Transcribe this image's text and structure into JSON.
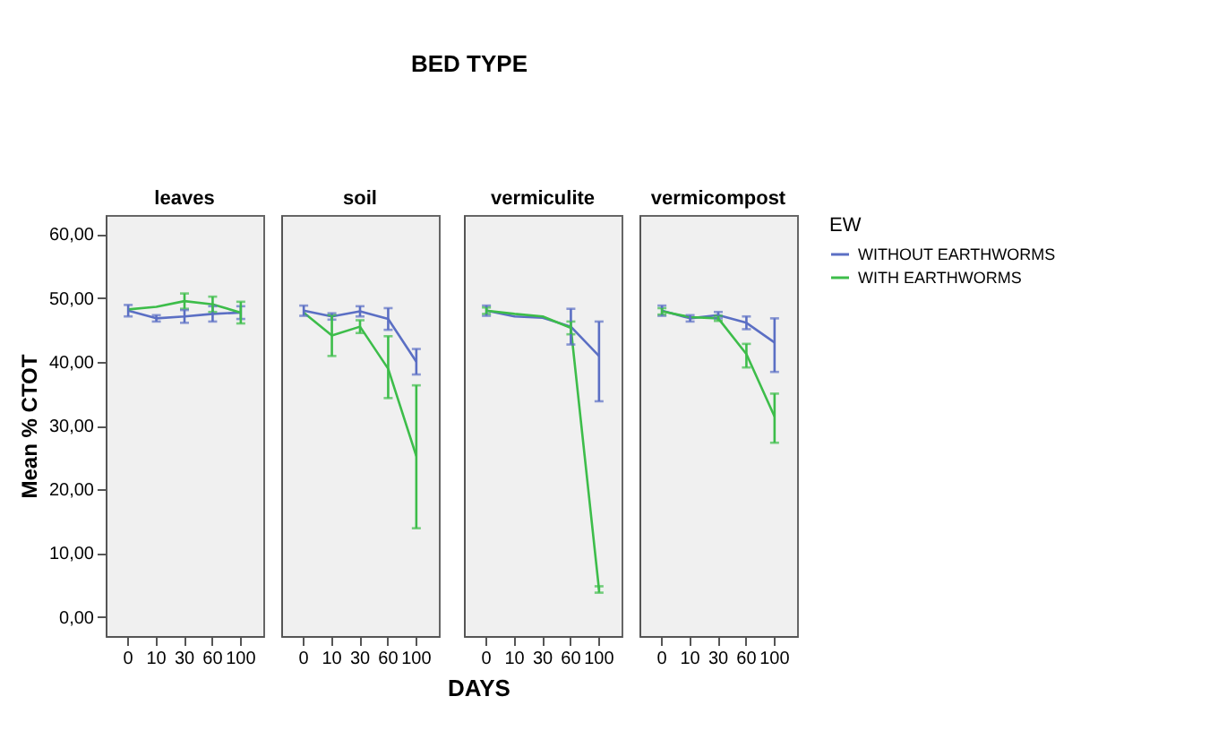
{
  "chart_data": [
    {
      "type": "line",
      "title": "leaves",
      "ylabel": "Mean % CTOT",
      "legend_title": "EW",
      "categories": [
        "0",
        "10",
        "30",
        "60",
        "100"
      ],
      "ylim": [
        -3,
        63
      ],
      "yticks": [
        {
          "value": 0,
          "label": "0,00"
        },
        {
          "value": 10,
          "label": "10,00"
        },
        {
          "value": 20,
          "label": "20,00"
        },
        {
          "value": 30,
          "label": "30,00"
        },
        {
          "value": 40,
          "label": "40,00"
        },
        {
          "value": 50,
          "label": "50,00"
        },
        {
          "value": 60,
          "label": "60,00"
        }
      ],
      "grid": false,
      "legend": false,
      "series": [
        {
          "color": "#5b6fc4",
          "values": [
            48.0,
            46.8,
            47.1,
            47.5,
            47.7
          ],
          "errors": [
            0.9,
            0.5,
            1.0,
            1.2,
            1.0
          ]
        },
        {
          "color": "#3dbd4a",
          "values": [
            48.2,
            48.6,
            49.5,
            49.0,
            47.7
          ],
          "errors": [
            null,
            null,
            1.2,
            1.2,
            1.7
          ]
        }
      ]
    },
    {
      "type": "line",
      "title": "soil",
      "xlabel": "DAYS",
      "annotations": [
        "BED TYPE"
      ],
      "categories": [
        "0",
        "10",
        "30",
        "60",
        "100"
      ],
      "ylim": [
        -3,
        63
      ],
      "grid": false,
      "legend": false,
      "tick_labels": "x",
      "series": [
        {
          "color": "#5b6fc4",
          "values": [
            48.0,
            47.1,
            47.9,
            46.7,
            40.0
          ],
          "errors": [
            0.8,
            0.5,
            0.8,
            1.7,
            2.0
          ]
        },
        {
          "color": "#3dbd4a",
          "values": [
            47.7,
            44.1,
            45.5,
            38.9,
            25.2
          ],
          "errors": [
            null,
            3.2,
            1.0,
            [
              34.3,
              44.0
            ],
            [
              13.9,
              36.3
            ]
          ]
        }
      ]
    },
    {
      "type": "line",
      "title": "vermiculite",
      "categories": [
        "0",
        "10",
        "30",
        "60",
        "100"
      ],
      "ylim": [
        -3,
        63
      ],
      "grid": false,
      "legend": false,
      "tick_labels": "x",
      "series": [
        {
          "color": "#5b6fc4",
          "values": [
            48.0,
            47.1,
            46.9,
            45.5,
            40.9
          ],
          "errors": [
            0.8,
            null,
            null,
            2.8,
            [
              33.8,
              46.3
            ]
          ]
        },
        {
          "color": "#3dbd4a",
          "values": [
            48.0,
            47.5,
            47.1,
            45.3,
            4.3
          ],
          "errors": [
            0.5,
            null,
            null,
            1.0,
            0.5
          ]
        }
      ]
    },
    {
      "type": "line",
      "title": "vermicompost",
      "categories": [
        "0",
        "10",
        "30",
        "60",
        "100"
      ],
      "ylim": [
        -3,
        63
      ],
      "grid": false,
      "legend": "top right",
      "tick_labels": "x",
      "series": [
        {
          "name": "WITHOUT EARTHWORMS",
          "color": "#5b6fc4",
          "values": [
            48.0,
            46.8,
            47.3,
            46.1,
            43.0
          ],
          "errors": [
            0.8,
            0.5,
            0.5,
            1.0,
            [
              38.4,
              46.8
            ]
          ]
        },
        {
          "name": "WITH EARTHWORMS",
          "color": "#3dbd4a",
          "values": [
            47.9,
            47.0,
            46.8,
            41.2,
            31.4
          ],
          "errors": [
            0.5,
            null,
            0.4,
            [
              39.1,
              42.8
            ],
            [
              27.3,
              35.0
            ]
          ]
        }
      ]
    }
  ]
}
